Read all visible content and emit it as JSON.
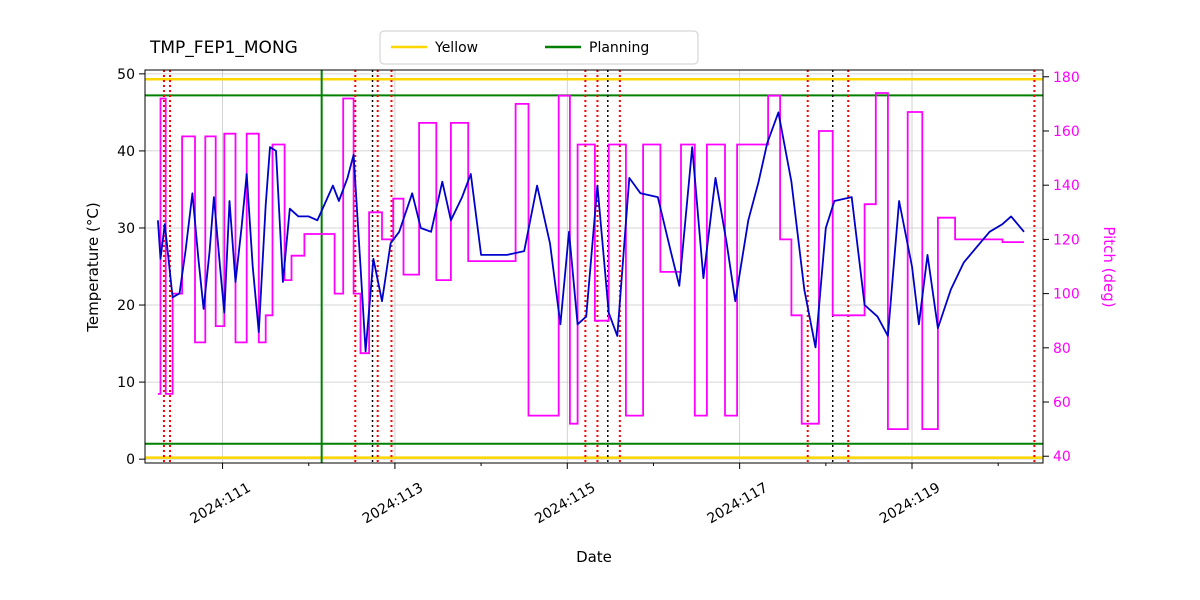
{
  "chart_data": {
    "type": "line",
    "title": "TMP_FEP1_MONG",
    "xlabel": "Date",
    "ylabel_left": "Temperature (°C)",
    "ylabel_right": "Pitch (deg)",
    "xlim": [
      110.1,
      120.52
    ],
    "ylim_left": [
      -0.5,
      50.5
    ],
    "ylim_right": [
      37.5,
      182.5
    ],
    "grid": true,
    "legend_position": "top",
    "legend": [
      {
        "label": "Yellow",
        "color": "#ffd700"
      },
      {
        "label": "Planning",
        "color": "#008000"
      }
    ],
    "colors": {
      "temperature": "#0000cd",
      "pitch": "#ff00ff",
      "grid": "#c8c8c8",
      "yellow_limit": "#ffd700",
      "planning_limit": "#008000",
      "violation": "#ff0000",
      "event": "#000000"
    },
    "xticks": [
      {
        "value": 111,
        "label": "2024:111"
      },
      {
        "value": 113,
        "label": "2024:113"
      },
      {
        "value": 115,
        "label": "2024:115"
      },
      {
        "value": 117,
        "label": "2024:117"
      },
      {
        "value": 119,
        "label": "2024:119"
      }
    ],
    "xticks_minor": [
      112,
      114,
      116,
      118,
      120
    ],
    "yticks_left": [
      0,
      10,
      20,
      30,
      40,
      50
    ],
    "yticks_right": [
      40,
      60,
      80,
      100,
      120,
      140,
      160,
      180
    ],
    "hlines": [
      {
        "y": 49.3,
        "color": "#ffd700",
        "width": 2.5
      },
      {
        "y": 0.2,
        "color": "#ffd700",
        "width": 2.5
      },
      {
        "y": 47.2,
        "color": "#008000",
        "width": 2
      },
      {
        "y": 2.0,
        "color": "#008000",
        "width": 2
      }
    ],
    "vlines": [
      {
        "x": 110.32,
        "color": "#ff0000",
        "style": "dotted",
        "width": 2
      },
      {
        "x": 110.39,
        "color": "#ff0000",
        "style": "dotted",
        "width": 2
      },
      {
        "x": 112.15,
        "color": "#008000",
        "style": "solid",
        "width": 2
      },
      {
        "x": 112.54,
        "color": "#ff0000",
        "style": "dotted",
        "width": 2
      },
      {
        "x": 112.74,
        "color": "#000000",
        "style": "dotted",
        "width": 1.5
      },
      {
        "x": 112.8,
        "color": "#ff0000",
        "style": "dotted",
        "width": 2
      },
      {
        "x": 112.96,
        "color": "#ff0000",
        "style": "dotted",
        "width": 2
      },
      {
        "x": 115.21,
        "color": "#ff0000",
        "style": "dotted",
        "width": 2
      },
      {
        "x": 115.35,
        "color": "#ff0000",
        "style": "dotted",
        "width": 2
      },
      {
        "x": 115.47,
        "color": "#000000",
        "style": "dotted",
        "width": 1.5
      },
      {
        "x": 115.61,
        "color": "#ff0000",
        "style": "dotted",
        "width": 2
      },
      {
        "x": 117.79,
        "color": "#ff0000",
        "style": "dotted",
        "width": 2
      },
      {
        "x": 118.08,
        "color": "#000000",
        "style": "dotted",
        "width": 1.5
      },
      {
        "x": 118.26,
        "color": "#ff0000",
        "style": "dotted",
        "width": 2
      },
      {
        "x": 120.42,
        "color": "#ff0000",
        "style": "dotted",
        "width": 2
      }
    ],
    "series": {
      "temperature": {
        "name": "TMP_FEP1_MONG temperature",
        "axis": "left",
        "style": "line",
        "points": [
          [
            110.25,
            31
          ],
          [
            110.28,
            26
          ],
          [
            110.33,
            30.5
          ],
          [
            110.42,
            21
          ],
          [
            110.5,
            21.5
          ],
          [
            110.57,
            27
          ],
          [
            110.65,
            34.5
          ],
          [
            110.72,
            26
          ],
          [
            110.78,
            19.5
          ],
          [
            110.85,
            27
          ],
          [
            110.9,
            34
          ],
          [
            110.97,
            25
          ],
          [
            111.02,
            19
          ],
          [
            111.08,
            33.5
          ],
          [
            111.15,
            23
          ],
          [
            111.22,
            30
          ],
          [
            111.28,
            37
          ],
          [
            111.35,
            25
          ],
          [
            111.42,
            16.5
          ],
          [
            111.5,
            33
          ],
          [
            111.55,
            40.5
          ],
          [
            111.62,
            40
          ],
          [
            111.7,
            23
          ],
          [
            111.78,
            32.5
          ],
          [
            111.88,
            31.5
          ],
          [
            112.0,
            31.5
          ],
          [
            112.1,
            31
          ],
          [
            112.18,
            33
          ],
          [
            112.28,
            35.5
          ],
          [
            112.35,
            33.5
          ],
          [
            112.45,
            36.5
          ],
          [
            112.52,
            39.5
          ],
          [
            112.6,
            25
          ],
          [
            112.66,
            14
          ],
          [
            112.75,
            26
          ],
          [
            112.85,
            20.5
          ],
          [
            112.95,
            28
          ],
          [
            113.05,
            29.5
          ],
          [
            113.2,
            34.5
          ],
          [
            113.3,
            30
          ],
          [
            113.42,
            29.5
          ],
          [
            113.55,
            36
          ],
          [
            113.65,
            31
          ],
          [
            113.78,
            34
          ],
          [
            113.88,
            37
          ],
          [
            114.0,
            26.5
          ],
          [
            114.3,
            26.5
          ],
          [
            114.5,
            27
          ],
          [
            114.65,
            35.5
          ],
          [
            114.8,
            28
          ],
          [
            114.92,
            17.5
          ],
          [
            115.02,
            29.5
          ],
          [
            115.12,
            17.5
          ],
          [
            115.22,
            18.5
          ],
          [
            115.35,
            35.5
          ],
          [
            115.48,
            19
          ],
          [
            115.58,
            16
          ],
          [
            115.72,
            36.5
          ],
          [
            115.85,
            34.5
          ],
          [
            116.05,
            34
          ],
          [
            116.2,
            27
          ],
          [
            116.3,
            22.5
          ],
          [
            116.45,
            40.5
          ],
          [
            116.58,
            23.5
          ],
          [
            116.72,
            36.5
          ],
          [
            116.85,
            28
          ],
          [
            116.95,
            20.5
          ],
          [
            117.1,
            31
          ],
          [
            117.22,
            36
          ],
          [
            117.32,
            41
          ],
          [
            117.45,
            45
          ],
          [
            117.6,
            36
          ],
          [
            117.75,
            22
          ],
          [
            117.88,
            14.5
          ],
          [
            118.0,
            30
          ],
          [
            118.1,
            33.5
          ],
          [
            118.3,
            34
          ],
          [
            118.45,
            20
          ],
          [
            118.6,
            18.5
          ],
          [
            118.72,
            16
          ],
          [
            118.85,
            33.5
          ],
          [
            119.0,
            25
          ],
          [
            119.08,
            17.5
          ],
          [
            119.18,
            26.5
          ],
          [
            119.3,
            17
          ],
          [
            119.45,
            22
          ],
          [
            119.6,
            25.5
          ],
          [
            119.75,
            27.5
          ],
          [
            119.9,
            29.5
          ],
          [
            120.05,
            30.5
          ],
          [
            120.15,
            31.5
          ],
          [
            120.3,
            29.5
          ]
        ]
      },
      "pitch": {
        "name": "Pitch",
        "axis": "right",
        "style": "step",
        "points": [
          [
            110.25,
            63
          ],
          [
            110.28,
            172
          ],
          [
            110.34,
            63
          ],
          [
            110.42,
            100
          ],
          [
            110.53,
            158
          ],
          [
            110.68,
            82
          ],
          [
            110.8,
            158
          ],
          [
            110.92,
            88
          ],
          [
            111.02,
            159
          ],
          [
            111.15,
            82
          ],
          [
            111.28,
            159
          ],
          [
            111.42,
            82
          ],
          [
            111.5,
            92
          ],
          [
            111.58,
            155
          ],
          [
            111.72,
            105
          ],
          [
            111.8,
            114
          ],
          [
            111.95,
            122
          ],
          [
            112.3,
            100
          ],
          [
            112.4,
            172
          ],
          [
            112.52,
            100
          ],
          [
            112.6,
            78
          ],
          [
            112.7,
            130
          ],
          [
            112.85,
            120
          ],
          [
            112.98,
            135
          ],
          [
            113.1,
            107
          ],
          [
            113.28,
            163
          ],
          [
            113.48,
            105
          ],
          [
            113.65,
            163
          ],
          [
            113.85,
            112
          ],
          [
            114.4,
            170
          ],
          [
            114.55,
            55
          ],
          [
            114.9,
            173
          ],
          [
            115.03,
            52
          ],
          [
            115.12,
            155
          ],
          [
            115.32,
            90
          ],
          [
            115.48,
            155
          ],
          [
            115.68,
            55
          ],
          [
            115.88,
            155
          ],
          [
            116.08,
            108
          ],
          [
            116.32,
            155
          ],
          [
            116.48,
            55
          ],
          [
            116.62,
            155
          ],
          [
            116.83,
            55
          ],
          [
            116.97,
            155
          ],
          [
            117.33,
            173
          ],
          [
            117.47,
            120
          ],
          [
            117.6,
            92
          ],
          [
            117.72,
            52
          ],
          [
            117.92,
            160
          ],
          [
            118.08,
            92
          ],
          [
            118.45,
            133
          ],
          [
            118.58,
            174
          ],
          [
            118.72,
            50
          ],
          [
            118.95,
            167
          ],
          [
            119.12,
            50
          ],
          [
            119.3,
            128
          ],
          [
            119.5,
            120
          ],
          [
            120.05,
            119
          ],
          [
            120.3,
            119
          ]
        ]
      }
    }
  }
}
